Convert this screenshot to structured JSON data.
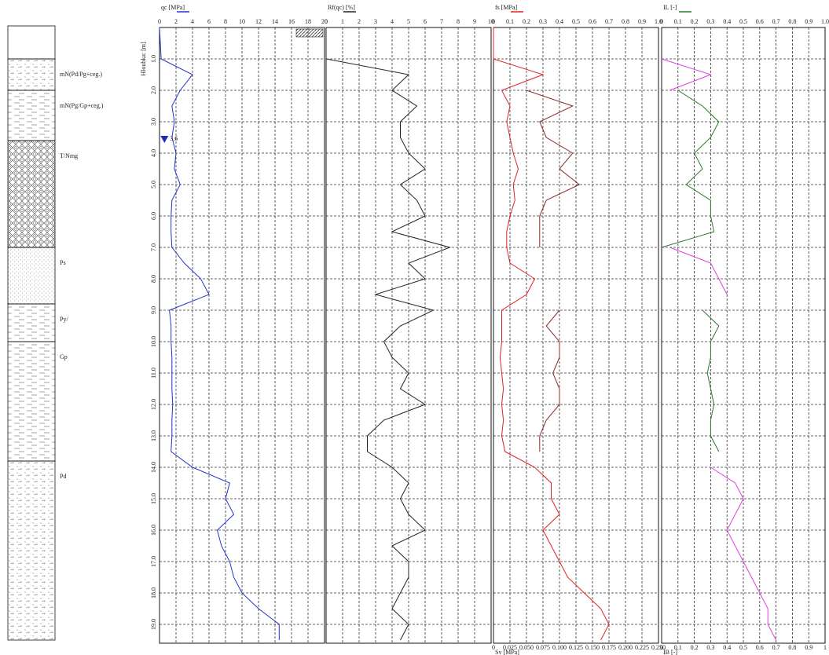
{
  "lithology": {
    "layers": [
      {
        "label": "mN(Pd/Pg+ceg.)",
        "from": 1.0,
        "to": 2.0
      },
      {
        "label": "mN(Pg/Gp+ceg.)",
        "from": 2.0,
        "to": 3.6
      },
      {
        "label": "T/Nmg",
        "from": 3.6,
        "to": 7.0
      },
      {
        "label": "Ps",
        "from": 7.0,
        "to": 8.8
      },
      {
        "label": "Py/",
        "from": 8.8,
        "to": 10.0
      },
      {
        "label": "Gp",
        "from": 10.0,
        "to": 13.8
      },
      {
        "label": "Pd",
        "from": 13.8,
        "to": 19.5
      }
    ]
  },
  "chart_data": [
    {
      "type": "line",
      "title": "qc [MPa]",
      "ylabel": "Hloubka: [m]",
      "xlim": [
        0,
        20
      ],
      "xticks": [
        0,
        2,
        4,
        6,
        8,
        10,
        12,
        14,
        16,
        18,
        20
      ],
      "ylim": [
        0,
        19.6
      ],
      "yticks": [
        {
          "value": 1,
          "label": "1.0"
        },
        {
          "value": 2,
          "label": "2.0"
        },
        {
          "value": 3,
          "label": "3.0"
        },
        {
          "value": 4,
          "label": "4.0"
        },
        {
          "value": 5,
          "label": "5.0"
        },
        {
          "value": 6,
          "label": "6.0"
        },
        {
          "value": 7,
          "label": "7.0"
        },
        {
          "value": 8,
          "label": "8.0"
        },
        {
          "value": 9,
          "label": "9.0"
        },
        {
          "value": 10,
          "label": "10.0"
        },
        {
          "value": 11,
          "label": "11.0"
        },
        {
          "value": 12,
          "label": "12.0"
        },
        {
          "value": 13,
          "label": "13.0"
        },
        {
          "value": 14,
          "label": "14.0"
        },
        {
          "value": 15,
          "label": "15.0"
        },
        {
          "value": 16,
          "label": "16.0"
        },
        {
          "value": 17,
          "label": "17.0"
        },
        {
          "value": 18,
          "label": "18.0"
        },
        {
          "value": 19,
          "label": "19.0"
        }
      ],
      "water_level": 3.6,
      "y": [
        0,
        1,
        1.5,
        2,
        2.5,
        3,
        3.5,
        4,
        4.5,
        5,
        5.5,
        6,
        6.5,
        7,
        7.5,
        8,
        8.5,
        9,
        9.5,
        10,
        10.5,
        11,
        11.5,
        12,
        12.5,
        13,
        13.5,
        14,
        14.5,
        15,
        15.5,
        16,
        16.5,
        17,
        17.5,
        18,
        18.5,
        19,
        19.5
      ],
      "series": [
        {
          "color": "#2233cc",
          "values": [
            0,
            0.2,
            4,
            2.5,
            1.5,
            1.8,
            1.5,
            2,
            1.8,
            2.5,
            1.5,
            1.4,
            1.4,
            1.5,
            3,
            5,
            6,
            1.2,
            1.4,
            1.4,
            1.5,
            1.5,
            1.5,
            1.6,
            1.5,
            1.5,
            1.4,
            4,
            8.5,
            8,
            9,
            7,
            7.5,
            8.5,
            9,
            10,
            12,
            14.5,
            14.5
          ]
        }
      ]
    },
    {
      "type": "line",
      "title": "Rf(qc) [%]",
      "xlim": [
        0,
        10
      ],
      "xticks": [
        0,
        1,
        2,
        3,
        4,
        5,
        6,
        7,
        8,
        9,
        10
      ],
      "ylim": [
        0,
        19.6
      ],
      "yticks": [
        1,
        2,
        3,
        4,
        5,
        6,
        7,
        8,
        9,
        10,
        11,
        12,
        13,
        14,
        15,
        16,
        17,
        18,
        19
      ],
      "y": [
        0,
        1,
        1.5,
        2,
        2.5,
        3,
        3.5,
        4,
        4.5,
        5,
        5.5,
        6,
        6.5,
        7,
        7.5,
        8,
        8.5,
        9,
        9.5,
        10,
        10.5,
        11,
        11.5,
        12,
        12.5,
        13,
        13.5,
        14,
        14.5,
        15,
        15.5,
        16,
        16.5,
        17,
        17.5,
        18,
        18.5,
        19,
        19.5
      ],
      "series": [
        {
          "color": "#222222",
          "values": [
            0,
            0,
            5,
            4,
            5.5,
            4.5,
            4.5,
            5,
            6,
            4.5,
            5.5,
            6,
            4,
            7.5,
            5,
            6,
            3,
            6.5,
            4.5,
            3.5,
            4,
            5,
            4.5,
            6,
            3.5,
            2.5,
            2.5,
            4,
            5,
            4.5,
            5,
            6,
            4,
            5,
            5,
            4.5,
            4,
            5,
            4.5
          ]
        }
      ]
    },
    {
      "type": "line",
      "title": "fs [MPa]",
      "x2label": "Sv [MPa]",
      "xlim": [
        0,
        1
      ],
      "xticks": [
        0,
        0.1,
        0.2,
        0.3,
        0.4,
        0.5,
        0.6,
        0.7,
        0.8,
        0.9,
        {
          "value": 1,
          "label": "1.0"
        }
      ],
      "x2lim": [
        0,
        0.25
      ],
      "x2ticks": [
        0,
        {
          "value": 0.025,
          "label": "0.025"
        },
        {
          "value": 0.05,
          "label": "0.050"
        },
        {
          "value": 0.075,
          "label": "0.075"
        },
        {
          "value": 0.1,
          "label": "0.100"
        },
        {
          "value": 0.125,
          "label": "0.125"
        },
        {
          "value": 0.15,
          "label": "0.150"
        },
        {
          "value": 0.175,
          "label": "0.175"
        },
        {
          "value": 0.2,
          "label": "0.200"
        },
        {
          "value": 0.225,
          "label": "0.225"
        },
        {
          "value": 0.25,
          "label": "0.250"
        }
      ],
      "ylim": [
        0,
        19.6
      ],
      "yticks": [
        1,
        2,
        3,
        4,
        5,
        6,
        7,
        8,
        9,
        10,
        11,
        12,
        13,
        14,
        15,
        16,
        17,
        18,
        19
      ],
      "y": [
        0,
        1,
        1.5,
        2,
        2.5,
        3,
        3.5,
        4,
        4.5,
        5,
        5.5,
        6,
        6.5,
        7,
        7.5,
        8,
        8.5,
        9,
        9.5,
        10,
        10.5,
        11,
        11.5,
        12,
        12.5,
        13,
        13.5,
        14,
        14.5,
        15,
        15.5,
        16,
        16.5,
        17,
        17.5,
        18,
        18.5,
        19,
        19.5
      ],
      "series": [
        {
          "color": "#e02020",
          "values": [
            0,
            0,
            0.3,
            0.05,
            0.1,
            0.08,
            0.1,
            0.12,
            0.15,
            0.12,
            0.13,
            0.1,
            0.08,
            0.08,
            0.1,
            0.25,
            0.2,
            0.05,
            0.05,
            0.05,
            0.04,
            0.05,
            0.06,
            0.05,
            0.06,
            0.05,
            0.07,
            0.25,
            0.35,
            0.35,
            0.4,
            0.3,
            0.35,
            0.4,
            0.45,
            0.55,
            0.65,
            0.7,
            0.65
          ]
        },
        {
          "color": "#8b2a2a",
          "axis": "x2",
          "values": [
            null,
            null,
            null,
            0.05,
            0.12,
            0.07,
            0.08,
            0.12,
            0.1,
            0.13,
            0.08,
            0.07,
            0.07,
            0.07,
            null,
            null,
            null,
            0.1,
            0.08,
            0.1,
            0.1,
            0.09,
            0.1,
            0.1,
            0.08,
            0.07,
            0.07,
            null,
            null,
            null,
            null,
            null,
            null,
            null,
            null,
            null,
            null,
            null,
            null
          ]
        }
      ]
    },
    {
      "type": "line",
      "title": "IL [-]",
      "x2label": "IB [-]",
      "xlim": [
        0,
        1
      ],
      "xticks": [
        0,
        0.1,
        0.2,
        0.3,
        0.4,
        0.5,
        0.6,
        0.7,
        0.8,
        0.9,
        {
          "value": 1,
          "label": "1.0"
        }
      ],
      "x2lim": [
        0,
        1
      ],
      "x2ticks": [
        0,
        0.1,
        0.2,
        0.3,
        0.4,
        0.5,
        0.6,
        0.7,
        0.8,
        0.9,
        1
      ],
      "ylim": [
        0,
        19.6
      ],
      "yticks": [
        1,
        2,
        3,
        4,
        5,
        6,
        7,
        8,
        9,
        10,
        11,
        12,
        13,
        14,
        15,
        16,
        17,
        18,
        19
      ],
      "y": [
        0,
        1,
        1.5,
        2,
        2.5,
        3,
        3.5,
        4,
        4.5,
        5,
        5.5,
        6,
        6.5,
        7,
        7.5,
        8,
        8.5,
        9,
        9.5,
        10,
        10.5,
        11,
        11.5,
        12,
        12.5,
        13,
        13.5,
        14,
        14.5,
        15,
        15.5,
        16,
        16.5,
        17,
        17.5,
        18,
        18.5,
        19,
        19.5
      ],
      "series": [
        {
          "color": "#2a7a2a",
          "values": [
            null,
            null,
            null,
            0.1,
            0.25,
            0.35,
            0.3,
            0.2,
            0.25,
            0.15,
            0.3,
            0.3,
            0.32,
            0,
            null,
            null,
            null,
            0.25,
            0.35,
            0.3,
            0.3,
            0.28,
            0.3,
            0.32,
            0.3,
            0.3,
            0.35,
            null,
            null,
            null,
            null,
            null,
            null,
            null,
            null,
            null,
            null,
            null,
            null
          ]
        },
        {
          "color": "#e040e0",
          "axis": "x2",
          "values": [
            null,
            0,
            0.3,
            0.05,
            null,
            null,
            null,
            null,
            null,
            null,
            null,
            null,
            null,
            0.05,
            0.3,
            0.35,
            0.4,
            null,
            null,
            null,
            null,
            null,
            null,
            null,
            null,
            null,
            null,
            0.3,
            0.45,
            0.5,
            0.45,
            0.4,
            0.45,
            0.5,
            0.55,
            0.6,
            0.65,
            0.65,
            0.7
          ]
        }
      ]
    }
  ]
}
